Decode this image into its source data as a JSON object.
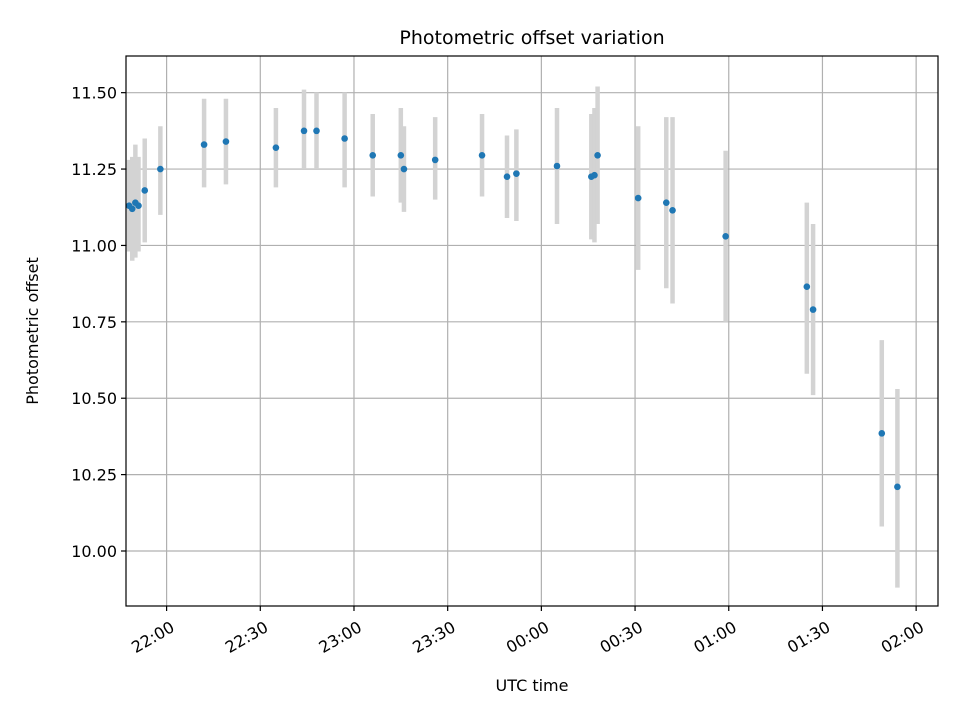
{
  "chart_data": {
    "type": "scatter",
    "title": "Photometric offset variation",
    "xlabel": "UTC time",
    "ylabel": "Photometric offset",
    "x_axis": {
      "kind": "time",
      "lim": [
        "21:47",
        "02:07"
      ],
      "tick_values": [
        "22:00",
        "22:30",
        "23:00",
        "23:30",
        "00:00",
        "00:30",
        "01:00",
        "01:30",
        "02:00"
      ],
      "tick_labels": [
        "22:00",
        "22:30",
        "23:00",
        "23:30",
        "00:00",
        "00:30",
        "01:00",
        "01:30",
        "02:00"
      ]
    },
    "y_axis": {
      "lim": [
        9.82,
        11.62
      ],
      "ticks": [
        10.0,
        10.25,
        10.5,
        10.75,
        11.0,
        11.25,
        11.5
      ],
      "tick_labels": [
        "10.00",
        "10.25",
        "10.50",
        "10.75",
        "11.00",
        "11.25",
        "11.50"
      ]
    },
    "grid": true,
    "marker_color": "#1f77b4",
    "errorbar_color": "#d3d3d3",
    "points": [
      {
        "x": "21:48",
        "y": 11.13,
        "yerr_low": 10.98,
        "yerr_high": 11.28
      },
      {
        "x": "21:49",
        "y": 11.12,
        "yerr_low": 10.95,
        "yerr_high": 11.29
      },
      {
        "x": "21:50",
        "y": 11.14,
        "yerr_low": 10.96,
        "yerr_high": 11.33
      },
      {
        "x": "21:51",
        "y": 11.13,
        "yerr_low": 10.98,
        "yerr_high": 11.29
      },
      {
        "x": "21:53",
        "y": 11.18,
        "yerr_low": 11.01,
        "yerr_high": 11.35
      },
      {
        "x": "21:58",
        "y": 11.25,
        "yerr_low": 11.1,
        "yerr_high": 11.39
      },
      {
        "x": "22:12",
        "y": 11.33,
        "yerr_low": 11.19,
        "yerr_high": 11.48
      },
      {
        "x": "22:19",
        "y": 11.34,
        "yerr_low": 11.2,
        "yerr_high": 11.48
      },
      {
        "x": "22:35",
        "y": 11.32,
        "yerr_low": 11.19,
        "yerr_high": 11.45
      },
      {
        "x": "22:44",
        "y": 11.375,
        "yerr_low": 11.25,
        "yerr_high": 11.51
      },
      {
        "x": "22:48",
        "y": 11.375,
        "yerr_low": 11.25,
        "yerr_high": 11.5
      },
      {
        "x": "22:57",
        "y": 11.35,
        "yerr_low": 11.19,
        "yerr_high": 11.5
      },
      {
        "x": "23:06",
        "y": 11.295,
        "yerr_low": 11.16,
        "yerr_high": 11.43
      },
      {
        "x": "23:15",
        "y": 11.295,
        "yerr_low": 11.14,
        "yerr_high": 11.45
      },
      {
        "x": "23:16",
        "y": 11.25,
        "yerr_low": 11.11,
        "yerr_high": 11.39
      },
      {
        "x": "23:26",
        "y": 11.28,
        "yerr_low": 11.15,
        "yerr_high": 11.42
      },
      {
        "x": "23:41",
        "y": 11.295,
        "yerr_low": 11.16,
        "yerr_high": 11.43
      },
      {
        "x": "23:49",
        "y": 11.225,
        "yerr_low": 11.09,
        "yerr_high": 11.36
      },
      {
        "x": "23:52",
        "y": 11.235,
        "yerr_low": 11.08,
        "yerr_high": 11.38
      },
      {
        "x": "00:05",
        "y": 11.26,
        "yerr_low": 11.07,
        "yerr_high": 11.45
      },
      {
        "x": "00:16",
        "y": 11.225,
        "yerr_low": 11.02,
        "yerr_high": 11.43
      },
      {
        "x": "00:17",
        "y": 11.23,
        "yerr_low": 11.01,
        "yerr_high": 11.45
      },
      {
        "x": "00:18",
        "y": 11.295,
        "yerr_low": 11.07,
        "yerr_high": 11.52
      },
      {
        "x": "00:31",
        "y": 11.155,
        "yerr_low": 10.92,
        "yerr_high": 11.39
      },
      {
        "x": "00:40",
        "y": 11.14,
        "yerr_low": 10.86,
        "yerr_high": 11.42
      },
      {
        "x": "00:42",
        "y": 11.115,
        "yerr_low": 10.81,
        "yerr_high": 11.42
      },
      {
        "x": "00:59",
        "y": 11.03,
        "yerr_low": 10.75,
        "yerr_high": 11.31
      },
      {
        "x": "01:25",
        "y": 10.865,
        "yerr_low": 10.58,
        "yerr_high": 11.14
      },
      {
        "x": "01:27",
        "y": 10.79,
        "yerr_low": 10.51,
        "yerr_high": 11.07
      },
      {
        "x": "01:49",
        "y": 10.385,
        "yerr_low": 10.08,
        "yerr_high": 10.69
      },
      {
        "x": "01:54",
        "y": 10.21,
        "yerr_low": 9.88,
        "yerr_high": 10.53
      }
    ]
  }
}
